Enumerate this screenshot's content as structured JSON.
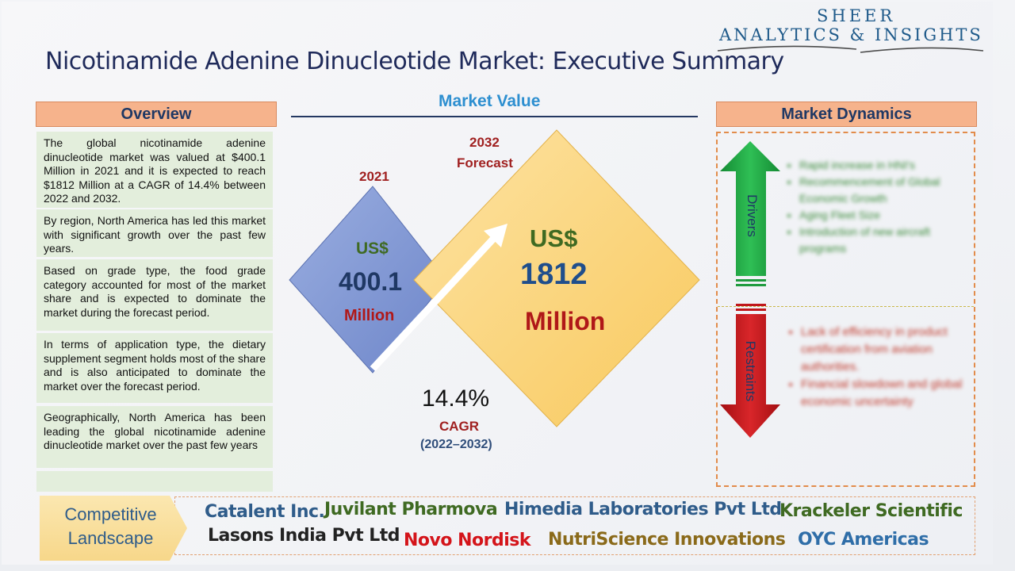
{
  "header": {
    "title": "Nicotinamide Adenine Dinucleotide Market: Executive Summary",
    "logo_line1": "SHEER",
    "logo_line2": "ANALYTICS & INSIGHTS"
  },
  "overview": {
    "heading": "Overview",
    "paragraphs": [
      "The global nicotinamide adenine dinucleotide market was valued at $400.1 Million in 2021 and it is expected to reach $1812 Million at a CAGR of 14.4% between 2022 and 2032.",
      "By region, North America has led this market with significant growth over the past few years.",
      "Based on grade type, the food grade category accounted for most of the market share and is expected to dominate the market during the forecast period.",
      "In terms of application type, the dietary supplement segment holds most of the share and is also anticipated to dominate the market over the forecast period.",
      "Geographically, North America has been leading the global nicotinamide adenine dinucleotide market over the past few years"
    ]
  },
  "market_value": {
    "heading": "Market Value",
    "year_2021": "2021",
    "currency_2021": "US$",
    "value_2021": "400.1",
    "unit_2021": "Million",
    "year_2032": "2032",
    "forecast_label": "Forecast",
    "currency_2032": "US$",
    "value_2032": "1812",
    "unit_2032": "Million",
    "cagr_value": "14.4%",
    "cagr_label": "CAGR",
    "cagr_period": "(2022–2032)"
  },
  "market_dynamics": {
    "heading": "Market Dynamics",
    "drivers_label": "Drivers",
    "restraints_label": "Restraints",
    "drivers": [
      "Rapid increase in HNI's",
      "Recommencement of Global Economic Growth",
      "Aging Fleet Size",
      "Introduction of new aircraft programs"
    ],
    "restraints": [
      "Lack of efficiency in product certification from aviation authorities.",
      "Financial slowdown and global economic uncertainty"
    ]
  },
  "competitive_landscape": {
    "label_line1": "Competitive",
    "label_line2": "Landscape",
    "companies": [
      "Catalent Inc.",
      "Juvilant Pharmova",
      "Himedia Laboratories Pvt Ltd",
      "Krackeler Scientific",
      "Lasons India Pvt Ltd",
      "Novo Nordisk",
      "NutriScience Innovations",
      "OYC Americas"
    ]
  },
  "colors": {
    "title": "#1f2a5a",
    "heading_fill": "#f6b38c",
    "overview_card": "#e3eedc",
    "diamond_2021": "#7f96d2",
    "diamond_2032": "#fbd27a",
    "driver_arrow": "#1f9b3e",
    "restraint_arrow": "#c0171b"
  }
}
